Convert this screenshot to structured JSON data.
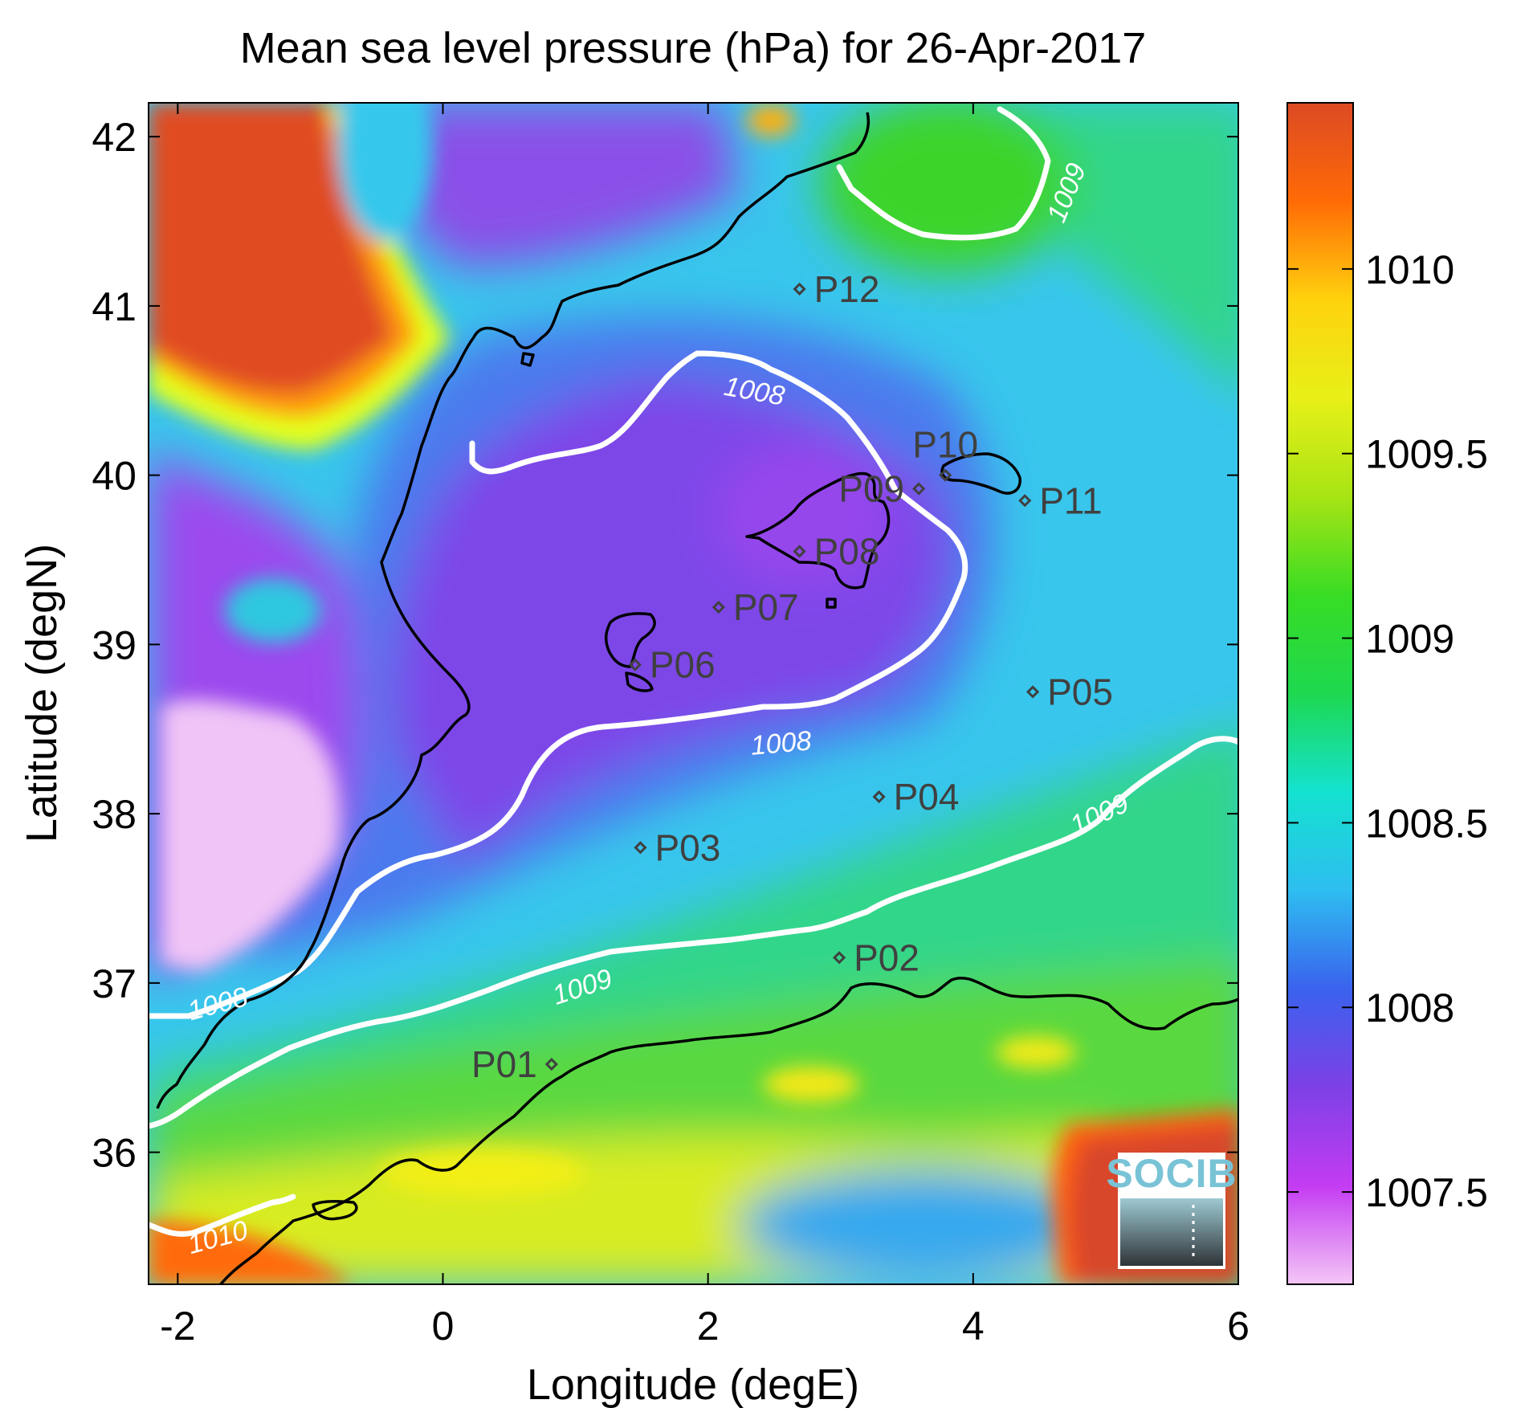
{
  "title": "Mean sea level pressure (hPa) for 26-Apr-2017",
  "xlabel": "Longitude (degE)",
  "ylabel": "Latitude (degN)",
  "x_ticks": [
    "-2",
    "0",
    "2",
    "4",
    "6"
  ],
  "y_ticks": [
    "36",
    "37",
    "38",
    "39",
    "40",
    "41",
    "42"
  ],
  "colorbar": {
    "range": [
      1007.25,
      1010.45
    ],
    "ticks": [
      "1007.5",
      "1008",
      "1008.5",
      "1009",
      "1009.5",
      "1010"
    ],
    "colormap": [
      "#f4c6f6",
      "#c43cf2",
      "#7d40e6",
      "#3a62ee",
      "#2ebdf0",
      "#14e2d0",
      "#1ed850",
      "#38dc24",
      "#a8e414",
      "#e8f018",
      "#ffd20e",
      "#ff6a06",
      "#dc4a24"
    ]
  },
  "contour_labels": [
    {
      "text": "1008",
      "lon": 2.35,
      "lat": 40.5,
      "angle": 10
    },
    {
      "text": "1008",
      "lon": 2.55,
      "lat": 38.42,
      "angle": -5
    },
    {
      "text": "1008",
      "lon": -1.7,
      "lat": 36.88,
      "angle": -15
    },
    {
      "text": "1009",
      "lon": 4.7,
      "lat": 41.67,
      "angle": -68
    },
    {
      "text": "1009",
      "lon": 4.95,
      "lat": 38.0,
      "angle": -25
    },
    {
      "text": "1009",
      "lon": 1.05,
      "lat": 36.98,
      "angle": -18
    },
    {
      "text": "1010",
      "lon": -1.7,
      "lat": 35.5,
      "angle": -15
    }
  ],
  "stations": [
    {
      "name": "P01",
      "lon": 0.82,
      "lat": 36.52,
      "label_side": "left"
    },
    {
      "name": "P02",
      "lon": 2.99,
      "lat": 37.15,
      "label_side": "right"
    },
    {
      "name": "P03",
      "lon": 1.49,
      "lat": 37.8,
      "label_side": "right"
    },
    {
      "name": "P04",
      "lon": 3.29,
      "lat": 38.1,
      "label_side": "right"
    },
    {
      "name": "P05",
      "lon": 4.45,
      "lat": 38.72,
      "label_side": "right"
    },
    {
      "name": "P06",
      "lon": 1.45,
      "lat": 38.88,
      "label_side": "right"
    },
    {
      "name": "P07",
      "lon": 2.08,
      "lat": 39.22,
      "label_side": "right"
    },
    {
      "name": "P08",
      "lon": 2.69,
      "lat": 39.55,
      "label_side": "right"
    },
    {
      "name": "P09",
      "lon": 3.59,
      "lat": 39.92,
      "label_side": "left"
    },
    {
      "name": "P10",
      "lon": 3.79,
      "lat": 40.0,
      "label_side": "top"
    },
    {
      "name": "P11",
      "lon": 4.39,
      "lat": 39.85,
      "label_side": "right"
    },
    {
      "name": "P12",
      "lon": 2.69,
      "lat": 41.1,
      "label_side": "right"
    }
  ],
  "logo": {
    "text": "SOCIB"
  }
}
